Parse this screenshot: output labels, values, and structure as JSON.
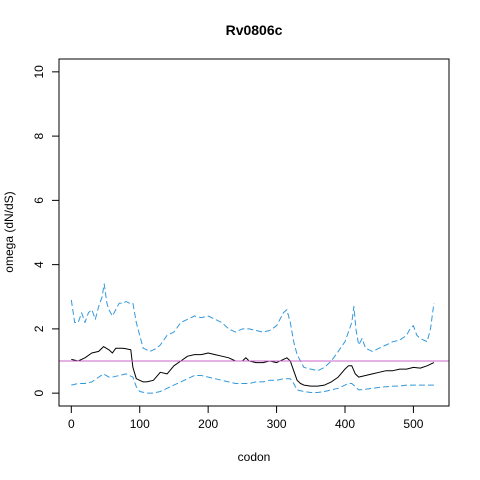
{
  "chart_data": {
    "type": "line",
    "title": "Rv0806c",
    "xlabel": "codon",
    "ylabel": "omega (dN/dS)",
    "xlim": [
      -18,
      552
    ],
    "ylim": [
      -0.4,
      10.4
    ],
    "xticks": [
      0,
      100,
      200,
      300,
      400,
      500
    ],
    "yticks": [
      0,
      2,
      4,
      6,
      8,
      10
    ],
    "reference_line": {
      "y": 1,
      "color": "#cc66cc"
    },
    "grid": false,
    "legend": "none",
    "series": [
      {
        "role": "estimate",
        "color": "#000000",
        "dash": "solid",
        "x": [
          0,
          10,
          20,
          30,
          40,
          47,
          55,
          60,
          65,
          70,
          75,
          80,
          87,
          90,
          95,
          100,
          105,
          110,
          120,
          130,
          140,
          150,
          160,
          170,
          180,
          190,
          200,
          210,
          220,
          230,
          240,
          250,
          255,
          260,
          270,
          280,
          290,
          300,
          310,
          315,
          320,
          325,
          330,
          335,
          340,
          350,
          360,
          370,
          380,
          390,
          400,
          405,
          410,
          415,
          420,
          430,
          440,
          450,
          460,
          470,
          480,
          490,
          500,
          510,
          520,
          530
        ],
        "y": [
          1.05,
          1.0,
          1.1,
          1.25,
          1.3,
          1.45,
          1.35,
          1.25,
          1.4,
          1.4,
          1.4,
          1.38,
          1.35,
          0.8,
          0.45,
          0.4,
          0.35,
          0.35,
          0.4,
          0.65,
          0.6,
          0.85,
          1.0,
          1.15,
          1.2,
          1.2,
          1.25,
          1.2,
          1.15,
          1.1,
          1.0,
          1.0,
          1.1,
          1.0,
          0.95,
          0.95,
          1.0,
          0.95,
          1.05,
          1.1,
          1.0,
          0.7,
          0.4,
          0.3,
          0.25,
          0.22,
          0.22,
          0.25,
          0.35,
          0.5,
          0.75,
          0.85,
          0.85,
          0.6,
          0.5,
          0.55,
          0.6,
          0.65,
          0.7,
          0.7,
          0.75,
          0.75,
          0.8,
          0.78,
          0.85,
          0.95
        ]
      },
      {
        "role": "upper",
        "color": "#3399dd",
        "dash": "dashed",
        "x": [
          0,
          5,
          10,
          15,
          20,
          25,
          30,
          35,
          40,
          45,
          48,
          52,
          55,
          60,
          65,
          70,
          75,
          80,
          85,
          90,
          95,
          100,
          105,
          110,
          115,
          120,
          125,
          130,
          140,
          150,
          160,
          170,
          180,
          190,
          200,
          210,
          220,
          230,
          240,
          250,
          260,
          270,
          280,
          290,
          300,
          310,
          315,
          320,
          325,
          330,
          335,
          340,
          350,
          360,
          370,
          380,
          390,
          400,
          405,
          410,
          413,
          416,
          420,
          425,
          430,
          440,
          450,
          460,
          470,
          480,
          490,
          495,
          500,
          505,
          510,
          520,
          525,
          530
        ],
        "y": [
          2.9,
          2.2,
          2.2,
          2.5,
          2.2,
          2.5,
          2.6,
          2.3,
          2.7,
          3.0,
          3.4,
          2.8,
          2.6,
          2.4,
          2.6,
          2.8,
          2.8,
          2.85,
          2.8,
          2.8,
          2.2,
          1.8,
          1.4,
          1.35,
          1.3,
          1.35,
          1.4,
          1.5,
          1.8,
          1.9,
          2.2,
          2.3,
          2.4,
          2.35,
          2.4,
          2.3,
          2.2,
          2.0,
          1.9,
          2.0,
          2.0,
          1.95,
          1.9,
          1.95,
          2.1,
          2.5,
          2.6,
          2.2,
          1.6,
          1.2,
          1.0,
          0.8,
          0.75,
          0.7,
          0.8,
          1.0,
          1.3,
          1.6,
          1.9,
          2.2,
          2.7,
          2.0,
          1.5,
          1.7,
          1.4,
          1.3,
          1.4,
          1.5,
          1.6,
          1.65,
          1.8,
          2.0,
          2.1,
          1.8,
          1.7,
          1.6,
          2.0,
          2.8
        ]
      },
      {
        "role": "lower",
        "color": "#3399dd",
        "dash": "dashed",
        "x": [
          0,
          10,
          20,
          30,
          40,
          47,
          55,
          60,
          70,
          80,
          90,
          95,
          100,
          110,
          120,
          130,
          140,
          150,
          160,
          170,
          180,
          190,
          200,
          210,
          220,
          230,
          240,
          250,
          260,
          270,
          280,
          290,
          300,
          310,
          320,
          325,
          330,
          340,
          350,
          360,
          370,
          380,
          390,
          400,
          405,
          410,
          415,
          420,
          430,
          440,
          450,
          460,
          470,
          480,
          490,
          500,
          510,
          520,
          530
        ],
        "y": [
          0.25,
          0.3,
          0.3,
          0.35,
          0.5,
          0.6,
          0.5,
          0.5,
          0.55,
          0.6,
          0.5,
          0.2,
          0.05,
          0.0,
          0.0,
          0.05,
          0.15,
          0.25,
          0.35,
          0.45,
          0.55,
          0.55,
          0.5,
          0.45,
          0.4,
          0.35,
          0.3,
          0.3,
          0.3,
          0.35,
          0.35,
          0.4,
          0.4,
          0.45,
          0.45,
          0.3,
          0.1,
          0.05,
          0.02,
          0.02,
          0.05,
          0.1,
          0.15,
          0.25,
          0.3,
          0.3,
          0.2,
          0.1,
          0.12,
          0.15,
          0.18,
          0.2,
          0.22,
          0.22,
          0.25,
          0.25,
          0.25,
          0.25,
          0.25
        ]
      }
    ]
  }
}
